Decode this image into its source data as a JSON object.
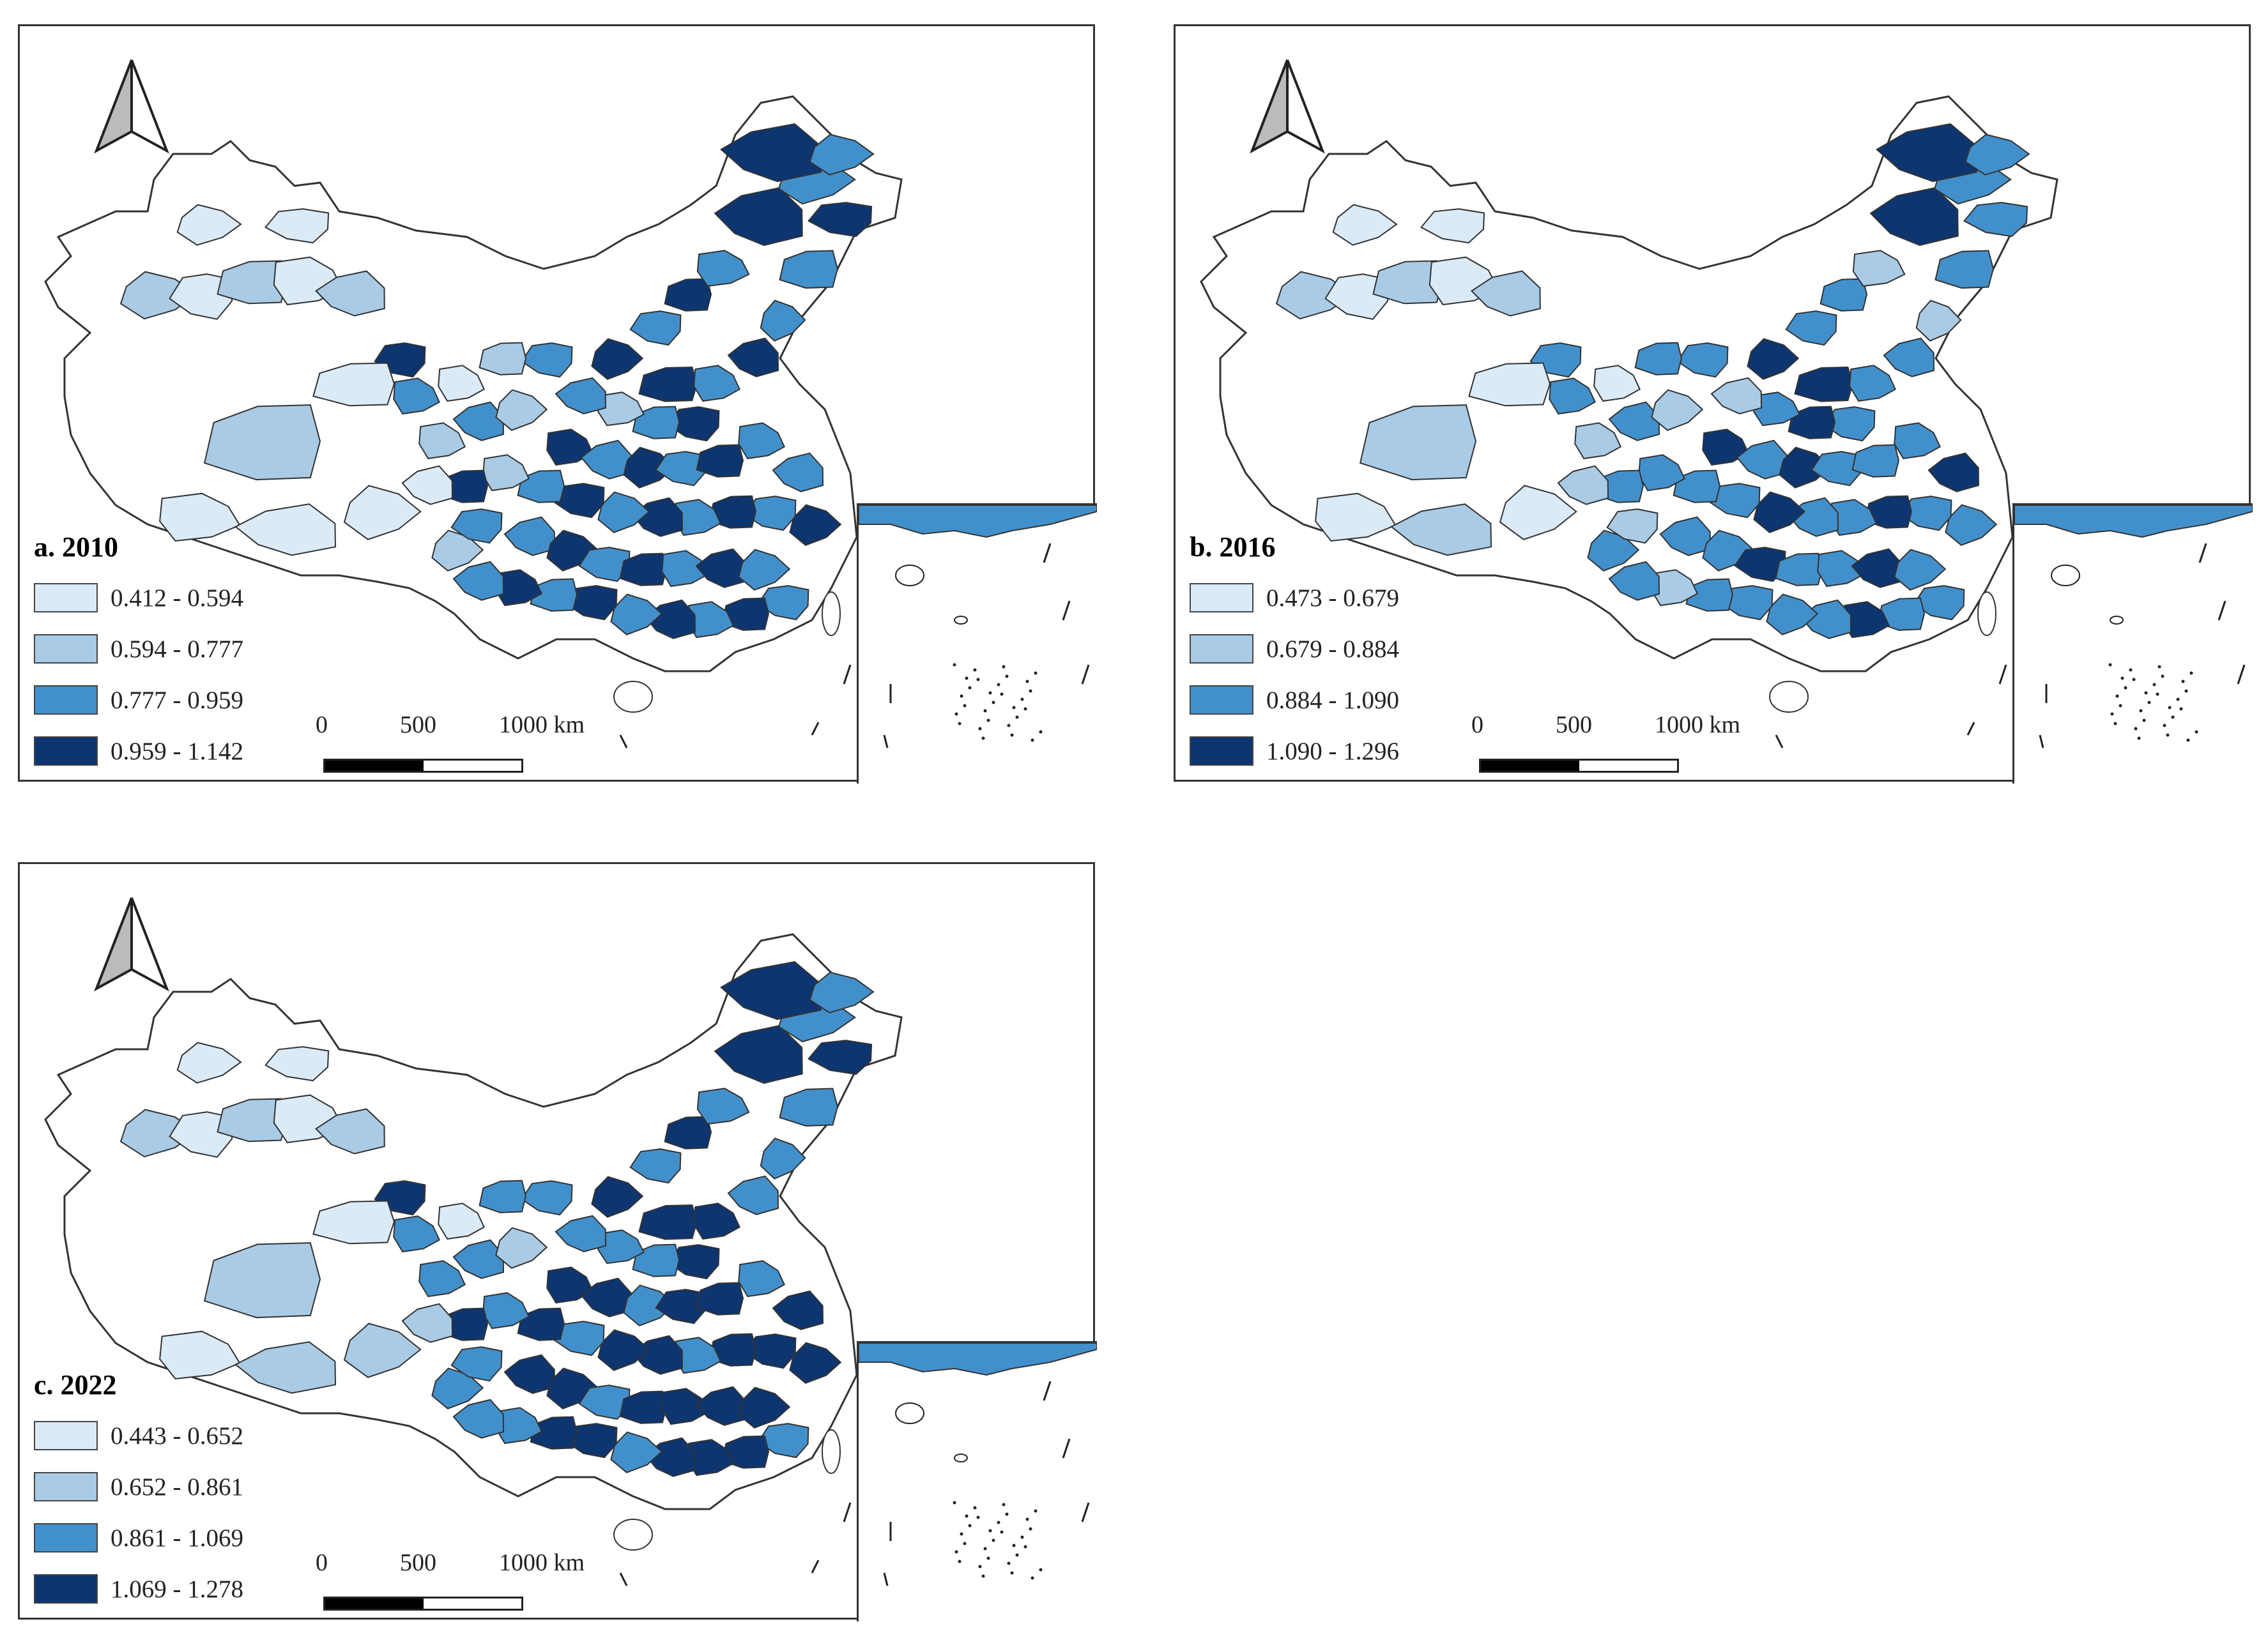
{
  "colors": {
    "class1": "#dbeaf7",
    "class2": "#a9cbe6",
    "class3": "#4290cb",
    "class4": "#0d3570",
    "outline": "#333333"
  },
  "scale_bar": {
    "tick0": "0",
    "tick1": "500",
    "tick2": "1000 km"
  },
  "panels": [
    {
      "title": "a.  2010",
      "legend": [
        "0.412 - 0.594",
        "0.594 - 0.777",
        "0.777 - 0.959",
        "0.959 - 1.142"
      ]
    },
    {
      "title": "b.  2016",
      "legend": [
        "0.473 - 0.679",
        "0.679 - 0.884",
        "0.884 - 1.090",
        "1.090 - 1.296"
      ]
    },
    {
      "title": "c. 2022",
      "legend": [
        "0.443 - 0.652",
        "0.652 - 0.861",
        "0.861 - 1.069",
        "1.069 - 1.278"
      ]
    }
  ]
}
